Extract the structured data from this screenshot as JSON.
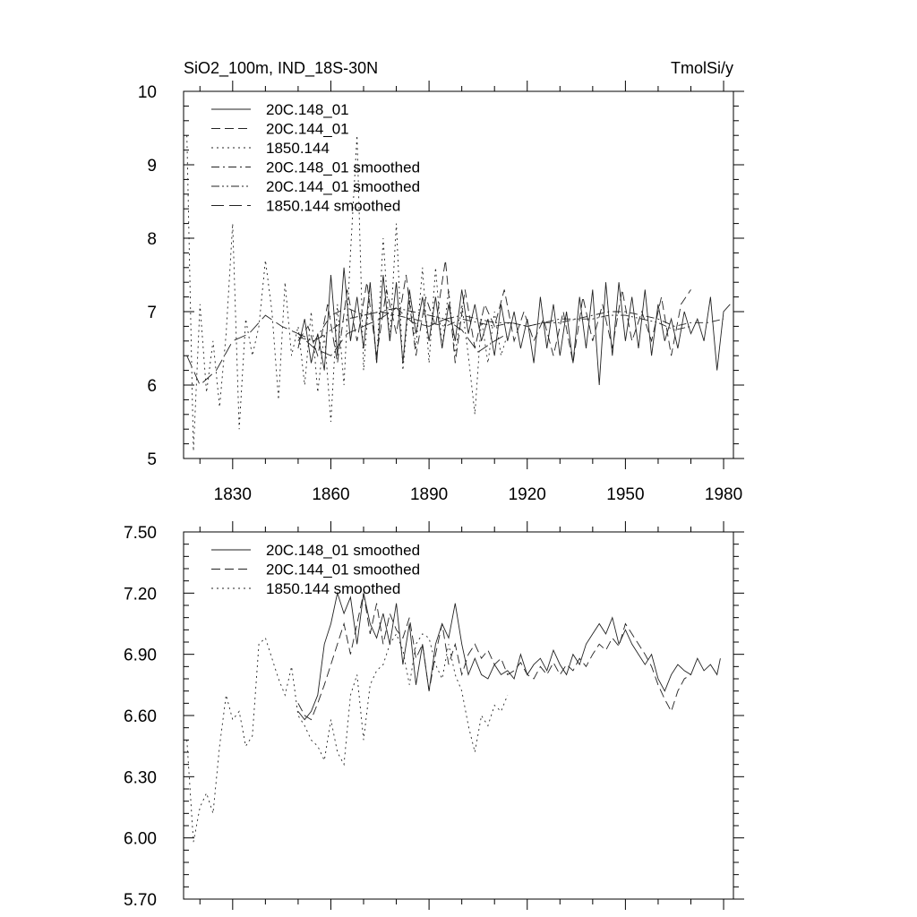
{
  "chart_data": [
    {
      "type": "line",
      "title_left": "SiO2_100m, IND_18S-30N",
      "title_right": "TmolSi/y",
      "xlim": [
        1815,
        1983
      ],
      "ylim": [
        5,
        10
      ],
      "xticks": [
        1830,
        1860,
        1890,
        1920,
        1950,
        1980
      ],
      "yticks": [
        5,
        6,
        7,
        8,
        9,
        10
      ],
      "ytick_labels": [
        "5",
        "6",
        "7",
        "8",
        "9",
        "10"
      ],
      "legend_position": "top-left",
      "series": [
        {
          "name": "20C.148_01",
          "style": "solid",
          "x": [
            1850,
            1852,
            1854,
            1856,
            1858,
            1860,
            1862,
            1864,
            1866,
            1868,
            1870,
            1872,
            1874,
            1876,
            1878,
            1880,
            1882,
            1884,
            1886,
            1888,
            1890,
            1892,
            1894,
            1896,
            1898,
            1900,
            1902,
            1904,
            1906,
            1908,
            1910,
            1912,
            1914,
            1916,
            1918,
            1920,
            1922,
            1924,
            1926,
            1928,
            1930,
            1932,
            1934,
            1936,
            1938,
            1940,
            1942,
            1944,
            1946,
            1948,
            1950,
            1952,
            1954,
            1956,
            1958,
            1960,
            1962,
            1964,
            1966,
            1968,
            1970,
            1972,
            1974,
            1976,
            1978,
            1980,
            1982
          ],
          "y": [
            6.5,
            6.9,
            6.3,
            6.7,
            6.2,
            7.5,
            6.4,
            7.6,
            6.6,
            7.2,
            6.5,
            7.4,
            6.3,
            7.5,
            6.6,
            7.4,
            6.3,
            7.3,
            6.7,
            7.2,
            6.6,
            7.2,
            6.5,
            7.1,
            6.6,
            7.3,
            6.7,
            7.1,
            6.6,
            6.9,
            6.4,
            7.1,
            6.6,
            7.0,
            6.5,
            6.9,
            6.3,
            7.2,
            6.5,
            7.1,
            6.4,
            7.0,
            6.3,
            7.2,
            6.5,
            7.3,
            6.0,
            7.4,
            6.4,
            7.4,
            6.6,
            7.2,
            6.5,
            7.3,
            6.4,
            7.1,
            6.6,
            6.9,
            6.5,
            7.0,
            6.7,
            6.9,
            6.6,
            7.2,
            6.2,
            7.0,
            7.1
          ]
        },
        {
          "name": "20C.144_01",
          "style": "dashed",
          "x": [
            1850,
            1853,
            1856,
            1859,
            1862,
            1865,
            1868,
            1871,
            1874,
            1877,
            1880,
            1883,
            1886,
            1889,
            1892,
            1895,
            1898,
            1901,
            1904,
            1907,
            1910,
            1913,
            1916,
            1919,
            1922,
            1925,
            1928,
            1931,
            1934,
            1937,
            1940,
            1943,
            1946,
            1949,
            1952,
            1955,
            1958,
            1961,
            1964,
            1967,
            1970
          ],
          "y": [
            6.6,
            6.8,
            6.4,
            7.1,
            6.3,
            7.3,
            6.6,
            7.4,
            6.4,
            7.3,
            6.7,
            7.5,
            6.4,
            7.2,
            6.8,
            7.7,
            6.3,
            7.3,
            6.5,
            7.1,
            6.8,
            7.3,
            6.6,
            7.0,
            6.6,
            6.9,
            6.4,
            7.0,
            6.3,
            7.2,
            6.6,
            7.1,
            6.5,
            7.3,
            6.6,
            7.0,
            6.6,
            7.2,
            6.4,
            7.1,
            7.3
          ]
        },
        {
          "name": "1850.144",
          "style": "dotted",
          "x": [
            1816,
            1818,
            1820,
            1822,
            1824,
            1826,
            1828,
            1830,
            1832,
            1834,
            1836,
            1838,
            1840,
            1842,
            1844,
            1846,
            1848,
            1850,
            1852,
            1854,
            1856,
            1858,
            1860,
            1862,
            1864,
            1866,
            1868,
            1870,
            1872,
            1874,
            1876,
            1878,
            1880,
            1882,
            1884,
            1886,
            1888,
            1890,
            1892,
            1894,
            1896,
            1898,
            1900,
            1902,
            1904,
            1906,
            1908,
            1910,
            1912,
            1914
          ],
          "y": [
            9.4,
            5.1,
            7.1,
            5.9,
            6.6,
            5.7,
            6.7,
            8.2,
            5.4,
            6.9,
            6.4,
            6.8,
            7.7,
            7.0,
            5.8,
            7.4,
            6.4,
            6.8,
            6.0,
            7.0,
            5.9,
            6.7,
            5.5,
            7.1,
            6.0,
            7.8,
            9.4,
            6.2,
            7.4,
            6.3,
            8.0,
            6.6,
            8.2,
            6.2,
            7.2,
            6.5,
            7.6,
            6.3,
            7.6,
            6.5,
            7.3,
            6.4,
            7.1,
            6.4,
            5.6,
            6.9,
            6.3,
            7.0,
            6.4,
            6.7
          ]
        },
        {
          "name": "20C.148_01 smoothed",
          "style": "dashdot",
          "x": [
            1850,
            1855,
            1860,
            1865,
            1870,
            1875,
            1880,
            1885,
            1890,
            1895,
            1900,
            1905,
            1910,
            1915,
            1920,
            1925,
            1930,
            1935,
            1940,
            1945,
            1950,
            1955,
            1960,
            1965,
            1970,
            1975,
            1980
          ],
          "y": [
            6.7,
            6.6,
            6.95,
            7.05,
            6.95,
            7.0,
            6.95,
            6.9,
            6.85,
            6.8,
            6.9,
            6.85,
            6.8,
            6.85,
            6.8,
            6.85,
            6.9,
            6.9,
            6.95,
            7.0,
            7.0,
            6.95,
            6.9,
            6.8,
            6.85,
            6.85,
            6.9
          ]
        },
        {
          "name": "20C.144_01 smoothed",
          "style": "dashdotdot",
          "x": [
            1850,
            1855,
            1860,
            1865,
            1870,
            1875,
            1880,
            1885,
            1890,
            1895,
            1900,
            1905,
            1910,
            1915,
            1920,
            1925,
            1930,
            1935,
            1940,
            1945,
            1950,
            1955,
            1960,
            1965,
            1970
          ],
          "y": [
            6.65,
            6.6,
            6.75,
            6.9,
            6.95,
            7.0,
            7.05,
            7.0,
            6.95,
            6.9,
            6.95,
            6.9,
            6.85,
            6.85,
            6.8,
            6.85,
            6.85,
            6.9,
            6.9,
            6.95,
            6.95,
            6.9,
            6.85,
            6.75,
            6.8
          ]
        },
        {
          "name": "1850.144 smoothed",
          "style": "longdash",
          "x": [
            1816,
            1820,
            1825,
            1830,
            1835,
            1840,
            1845,
            1850,
            1855,
            1860,
            1865,
            1870,
            1875,
            1880,
            1885,
            1890,
            1895,
            1900,
            1905,
            1910,
            1914
          ],
          "y": [
            6.4,
            6.0,
            6.2,
            6.6,
            6.7,
            6.95,
            6.8,
            6.7,
            6.5,
            6.4,
            6.7,
            6.8,
            6.9,
            7.05,
            6.85,
            6.8,
            6.9,
            6.75,
            6.45,
            6.6,
            6.7
          ]
        }
      ]
    },
    {
      "type": "line",
      "xlim": [
        1815,
        1983
      ],
      "ylim": [
        5.7,
        7.5
      ],
      "xticks": [
        1830,
        1860,
        1890,
        1920,
        1950,
        1980
      ],
      "yticks": [
        5.7,
        6.0,
        6.3,
        6.6,
        6.9,
        7.2,
        7.5
      ],
      "ytick_labels": [
        "5.70",
        "6.00",
        "6.30",
        "6.60",
        "6.90",
        "7.20",
        "7.50"
      ],
      "legend_position": "top-left",
      "series": [
        {
          "name": "20C.148_01 smoothed",
          "style": "solid",
          "x": [
            1850,
            1852,
            1854,
            1856,
            1858,
            1860,
            1862,
            1864,
            1866,
            1868,
            1870,
            1872,
            1874,
            1876,
            1878,
            1880,
            1882,
            1884,
            1886,
            1888,
            1890,
            1892,
            1894,
            1896,
            1898,
            1900,
            1902,
            1904,
            1906,
            1908,
            1910,
            1912,
            1914,
            1916,
            1918,
            1920,
            1922,
            1924,
            1926,
            1928,
            1930,
            1932,
            1934,
            1936,
            1938,
            1940,
            1942,
            1944,
            1946,
            1948,
            1950,
            1952,
            1954,
            1956,
            1958,
            1960,
            1962,
            1964,
            1966,
            1968,
            1970,
            1972,
            1974,
            1976,
            1978,
            1979
          ],
          "y": [
            6.62,
            6.58,
            6.62,
            6.7,
            6.95,
            7.05,
            7.2,
            7.1,
            7.18,
            6.95,
            7.2,
            7.05,
            6.98,
            7.1,
            6.95,
            7.15,
            6.85,
            7.05,
            6.75,
            6.95,
            6.72,
            6.95,
            7.05,
            6.98,
            7.15,
            6.95,
            6.8,
            6.88,
            6.8,
            6.78,
            6.85,
            6.8,
            6.82,
            6.78,
            6.9,
            6.8,
            6.85,
            6.88,
            6.82,
            6.92,
            6.85,
            6.8,
            6.9,
            6.85,
            6.95,
            7.0,
            7.05,
            7.0,
            7.08,
            6.95,
            7.02,
            6.95,
            6.9,
            6.85,
            6.9,
            6.78,
            6.72,
            6.8,
            6.85,
            6.82,
            6.8,
            6.88,
            6.82,
            6.85,
            6.8,
            6.88
          ]
        },
        {
          "name": "20C.144_01 smoothed",
          "style": "dashed",
          "x": [
            1850,
            1852,
            1854,
            1856,
            1858,
            1860,
            1862,
            1864,
            1866,
            1868,
            1870,
            1872,
            1874,
            1876,
            1878,
            1880,
            1882,
            1884,
            1886,
            1888,
            1890,
            1892,
            1894,
            1896,
            1898,
            1900,
            1902,
            1904,
            1906,
            1908,
            1910,
            1912,
            1914,
            1916,
            1918,
            1920,
            1922,
            1924,
            1926,
            1928,
            1930,
            1932,
            1934,
            1936,
            1938,
            1940,
            1942,
            1944,
            1946,
            1948,
            1950,
            1952,
            1954,
            1956,
            1958,
            1960,
            1962,
            1964,
            1966,
            1968,
            1970
          ],
          "y": [
            6.66,
            6.6,
            6.58,
            6.66,
            6.75,
            6.85,
            6.95,
            7.05,
            6.9,
            7.05,
            7.2,
            7.0,
            7.15,
            6.95,
            7.1,
            7.02,
            6.98,
            7.08,
            6.88,
            6.95,
            6.72,
            6.9,
            7.05,
            6.85,
            6.95,
            6.8,
            6.9,
            6.95,
            6.88,
            6.92,
            6.85,
            6.88,
            6.8,
            6.82,
            6.86,
            6.8,
            6.78,
            6.84,
            6.8,
            6.86,
            6.8,
            6.85,
            6.82,
            6.88,
            6.84,
            6.9,
            6.95,
            6.92,
            6.98,
            6.94,
            7.05,
            7.0,
            6.95,
            6.9,
            6.84,
            6.75,
            6.68,
            6.62,
            6.72,
            6.78,
            6.8
          ]
        },
        {
          "name": "1850.144 smoothed",
          "style": "dotted",
          "x": [
            1816,
            1818,
            1820,
            1822,
            1824,
            1826,
            1828,
            1830,
            1832,
            1834,
            1836,
            1838,
            1840,
            1842,
            1844,
            1846,
            1848,
            1850,
            1852,
            1854,
            1856,
            1858,
            1860,
            1862,
            1864,
            1866,
            1868,
            1870,
            1872,
            1874,
            1876,
            1878,
            1880,
            1882,
            1884,
            1886,
            1888,
            1890,
            1892,
            1894,
            1896,
            1898,
            1900,
            1902,
            1904,
            1906,
            1908,
            1910,
            1912,
            1914
          ],
          "y": [
            6.48,
            5.98,
            6.15,
            6.22,
            6.12,
            6.45,
            6.7,
            6.58,
            6.62,
            6.45,
            6.5,
            6.95,
            6.98,
            6.88,
            6.78,
            6.7,
            6.84,
            6.6,
            6.55,
            6.48,
            6.45,
            6.38,
            6.58,
            6.42,
            6.36,
            6.7,
            6.8,
            6.48,
            6.75,
            6.82,
            6.85,
            6.95,
            7.0,
            6.92,
            6.75,
            6.95,
            7.0,
            6.98,
            6.85,
            6.78,
            6.95,
            6.8,
            6.72,
            6.55,
            6.42,
            6.6,
            6.55,
            6.65,
            6.62,
            6.7
          ]
        }
      ]
    }
  ]
}
